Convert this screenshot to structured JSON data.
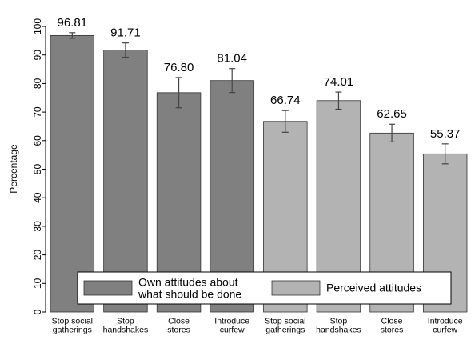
{
  "chart_data": {
    "type": "bar",
    "y_label": "Percentage",
    "categories": [
      "Stop social\ngatherings",
      "Stop\nhandshakes",
      "Close\nstores",
      "Introduce\ncurfew",
      "Stop social\ngatherings",
      "Stop\nhandshakes",
      "Close\nstores",
      "Introduce\ncurfew"
    ],
    "series": [
      {
        "name": "Own attitudes about\nwhat should be done",
        "color": "#808080",
        "values": [
          96.81,
          91.71,
          76.8,
          81.04,
          null,
          null,
          null,
          null
        ],
        "value_labels": [
          "96.81",
          "91.71",
          "76.80",
          "81.04",
          null,
          null,
          null,
          null
        ],
        "errors": [
          1,
          2.5,
          5.3,
          4.2,
          null,
          null,
          null,
          null
        ]
      },
      {
        "name": "Perceived attitudes",
        "color": "#b3b3b3",
        "values": [
          null,
          null,
          null,
          null,
          66.74,
          74.01,
          62.65,
          55.37
        ],
        "value_labels": [
          null,
          null,
          null,
          null,
          "66.74",
          "74.01",
          "62.65",
          "55.37"
        ],
        "errors": [
          null,
          null,
          null,
          null,
          3.8,
          3,
          3.1,
          3.5
        ]
      }
    ],
    "ylim": [
      0,
      100
    ],
    "yticks": [
      0,
      10,
      20,
      30,
      40,
      50,
      60,
      70,
      80,
      90,
      100
    ],
    "grid": false,
    "legend": "bottom"
  }
}
